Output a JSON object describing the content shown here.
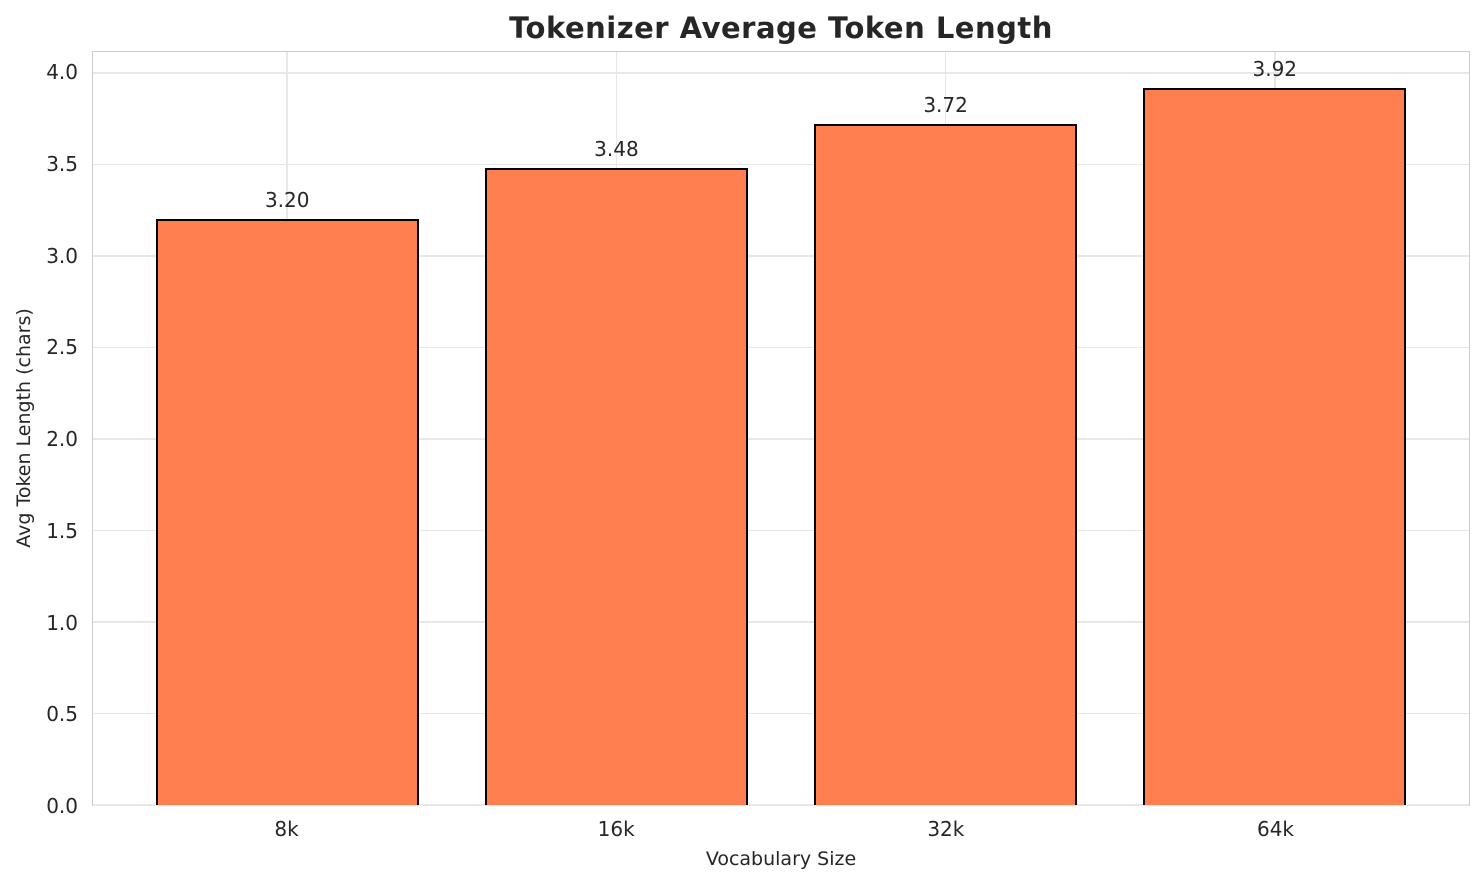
{
  "chart_data": {
    "type": "bar",
    "title": "Tokenizer Average Token Length",
    "xlabel": "Vocabulary Size",
    "ylabel": "Avg Token Length (chars)",
    "categories": [
      "8k",
      "16k",
      "32k",
      "64k"
    ],
    "values": [
      3.2,
      3.48,
      3.72,
      3.92
    ],
    "bar_labels": [
      "3.20",
      "3.48",
      "3.72",
      "3.92"
    ],
    "ytick_labels": [
      "0.0",
      "0.5",
      "1.0",
      "1.5",
      "2.0",
      "2.5",
      "3.0",
      "3.5",
      "4.0"
    ],
    "ylim": [
      0,
      4.115
    ],
    "xlim": [
      -0.59,
      3.59
    ],
    "bar_width": 0.8,
    "grid": true,
    "legend_position": "none",
    "colors": {
      "bar_fill": "#FF7F50",
      "bar_edge": "#000000",
      "gridline": "#e7e7e7",
      "spine": "#cccccc",
      "text": "#262626",
      "background": "#ffffff"
    }
  }
}
